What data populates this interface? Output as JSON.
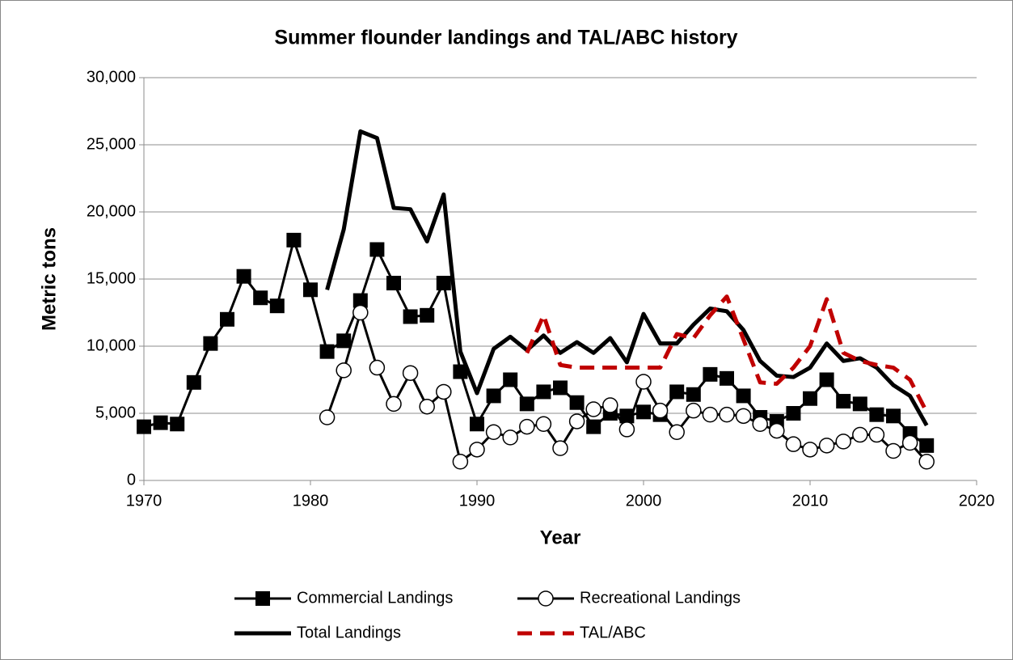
{
  "chart_data": {
    "type": "line",
    "title": "Summer flounder landings and TAL/ABC history",
    "x_label": "Year",
    "y_label": "Metric tons",
    "x": [
      1970,
      1971,
      1972,
      1973,
      1974,
      1975,
      1976,
      1977,
      1978,
      1979,
      1980,
      1981,
      1982,
      1983,
      1984,
      1985,
      1986,
      1987,
      1988,
      1989,
      1990,
      1991,
      1992,
      1993,
      1994,
      1995,
      1996,
      1997,
      1998,
      1999,
      2000,
      2001,
      2002,
      2003,
      2004,
      2005,
      2006,
      2007,
      2008,
      2009,
      2010,
      2011,
      2012,
      2013,
      2014,
      2015,
      2016,
      2017
    ],
    "series": [
      {
        "name": "Commercial Landings",
        "color": "#000000",
        "marker": "square",
        "dash": false,
        "values": [
          4000,
          4300,
          4200,
          7300,
          10200,
          12000,
          15200,
          13600,
          13000,
          17900,
          14200,
          9600,
          10400,
          13400,
          17200,
          14700,
          12200,
          12300,
          14700,
          8100,
          4200,
          6300,
          7500,
          5700,
          6600,
          6900,
          5800,
          4000,
          5000,
          4800,
          5100,
          4900,
          6600,
          6400,
          7900,
          7600,
          6300,
          4700,
          4400,
          5000,
          6100,
          7500,
          5900,
          5700,
          4900,
          4800,
          3500,
          2600
        ]
      },
      {
        "name": "Recreational Landings",
        "color": "#000000",
        "marker": "circle",
        "dash": false,
        "values": [
          null,
          null,
          null,
          null,
          null,
          null,
          null,
          null,
          null,
          null,
          null,
          4700,
          8200,
          12500,
          8400,
          5700,
          8000,
          5500,
          6600,
          1400,
          2300,
          3600,
          3200,
          4000,
          4200,
          2400,
          4400,
          5300,
          5600,
          3800,
          7350,
          5200,
          3600,
          5200,
          4900,
          4900,
          4800,
          4200,
          3700,
          2700,
          2300,
          2600,
          2900,
          3400,
          3400,
          2200,
          2800,
          1400
        ]
      },
      {
        "name": "Total Landings",
        "color": "#000000",
        "marker": "none",
        "dash": false,
        "values": [
          null,
          null,
          null,
          null,
          null,
          null,
          null,
          null,
          null,
          null,
          null,
          14200,
          18700,
          26000,
          25500,
          20300,
          20200,
          17800,
          21300,
          9600,
          6500,
          9800,
          10700,
          9700,
          10800,
          9500,
          10300,
          9500,
          10600,
          8800,
          12400,
          10200,
          10200,
          11600,
          12800,
          12600,
          11200,
          8900,
          7800,
          7700,
          8400,
          10200,
          8900,
          9100,
          8400,
          7100,
          6300,
          4100
        ]
      },
      {
        "name": "TAL/ABC",
        "color": "#c00000",
        "marker": "none",
        "dash": true,
        "values": [
          null,
          null,
          null,
          null,
          null,
          null,
          null,
          null,
          null,
          null,
          null,
          null,
          null,
          null,
          null,
          null,
          null,
          null,
          null,
          null,
          null,
          null,
          null,
          9500,
          12300,
          8600,
          8400,
          8400,
          8400,
          8400,
          8400,
          8400,
          10900,
          10600,
          12300,
          13700,
          10500,
          7300,
          7200,
          8400,
          10000,
          13500,
          9500,
          8900,
          8600,
          8400,
          7500,
          5100
        ]
      }
    ],
    "xlim": [
      1970,
      2020
    ],
    "xticks": [
      1970,
      1980,
      1990,
      2000,
      2010,
      2020
    ],
    "ylim": [
      0,
      30000
    ],
    "yticks": [
      0,
      {
        "value": 5000,
        "label": "5,000"
      },
      {
        "value": 10000,
        "label": "10,000"
      },
      {
        "value": 15000,
        "label": "15,000"
      },
      {
        "value": 20000,
        "label": "20,000"
      },
      {
        "value": 25000,
        "label": "25,000"
      },
      {
        "value": 30000,
        "label": "30,000"
      }
    ],
    "grid": true,
    "legend": "bottom"
  }
}
